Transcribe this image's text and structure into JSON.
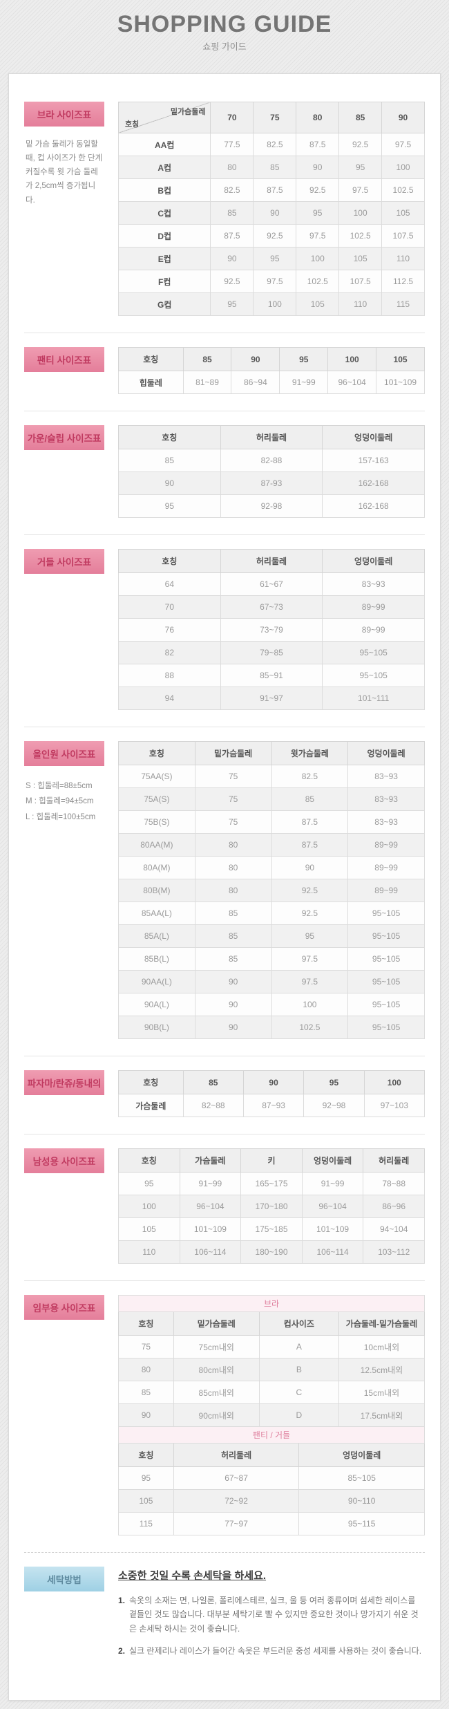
{
  "header": {
    "title": "SHOPPING GUIDE",
    "subtitle": "쇼핑 가이드"
  },
  "common": {
    "naming_label": "호칭"
  },
  "colors": {
    "accent_pink_bg": "#e8849f",
    "accent_pink_text": "#c03a60",
    "subheader_pink_bg": "#fcf0f4",
    "subheader_pink_text": "#df7f9d",
    "washing_blue_bg": "#a9d5e8",
    "washing_blue_text": "#5f8ba0",
    "table_header_bg": "#efefef",
    "row_alt_bg": "#f1f1f1"
  },
  "sections": {
    "bra": {
      "badge": "브라 사이즈표",
      "note": "밑 가슴 둘레가 동일할 때, 컵 사이즈가 한 단계 커질수록 윗 가슴 둘레가 2,5cm씩 증가됩니다.",
      "diagonal": {
        "top": "밑가슴둘레",
        "bottom": "호칭"
      },
      "columns": [
        "70",
        "75",
        "80",
        "85",
        "90"
      ],
      "rows": [
        [
          "AA컵",
          "77.5",
          "82.5",
          "87.5",
          "92.5",
          "97.5"
        ],
        [
          "A컵",
          "80",
          "85",
          "90",
          "95",
          "100"
        ],
        [
          "B컵",
          "82.5",
          "87.5",
          "92.5",
          "97.5",
          "102.5"
        ],
        [
          "C컵",
          "85",
          "90",
          "95",
          "100",
          "105"
        ],
        [
          "D컵",
          "87.5",
          "92.5",
          "97.5",
          "102.5",
          "107.5"
        ],
        [
          "E컵",
          "90",
          "95",
          "100",
          "105",
          "110"
        ],
        [
          "F컵",
          "92.5",
          "97.5",
          "102.5",
          "107.5",
          "112.5"
        ],
        [
          "G컵",
          "95",
          "100",
          "105",
          "110",
          "115"
        ]
      ]
    },
    "panty": {
      "badge": "팬티 사이즈표",
      "columns": [
        "호칭",
        "85",
        "90",
        "95",
        "100",
        "105"
      ],
      "rows": [
        [
          "힙둘레",
          "81~89",
          "86~94",
          "91~99",
          "96~104",
          "101~109"
        ]
      ]
    },
    "gownSlip": {
      "badge": "가운/슬립 사이즈표",
      "columns": [
        "호칭",
        "허리둘레",
        "엉덩이둘레"
      ],
      "rows": [
        [
          "85",
          "82-88",
          "157-163"
        ],
        [
          "90",
          "87-93",
          "162-168"
        ],
        [
          "95",
          "92-98",
          "162-168"
        ]
      ]
    },
    "girdle": {
      "badge": "거들 사이즈표",
      "columns": [
        "호칭",
        "허리둘레",
        "엉덩이둘레"
      ],
      "rows": [
        [
          "64",
          "61~67",
          "83~93"
        ],
        [
          "70",
          "67~73",
          "89~99"
        ],
        [
          "76",
          "73~79",
          "89~99"
        ],
        [
          "82",
          "79~85",
          "95~105"
        ],
        [
          "88",
          "85~91",
          "95~105"
        ],
        [
          "94",
          "91~97",
          "101~111"
        ]
      ]
    },
    "allInOne": {
      "badge": "올인원 사이즈표",
      "notes": [
        "S : 힙둘레=88±5cm",
        "M : 힙둘레=94±5cm",
        "L : 힙둘레=100±5cm"
      ],
      "columns": [
        "호칭",
        "밑가슴둘레",
        "윗가슴둘레",
        "엉덩이둘레"
      ],
      "rows": [
        [
          "75AA(S)",
          "75",
          "82.5",
          "83~93"
        ],
        [
          "75A(S)",
          "75",
          "85",
          "83~93"
        ],
        [
          "75B(S)",
          "75",
          "87.5",
          "83~93"
        ],
        [
          "80AA(M)",
          "80",
          "87.5",
          "89~99"
        ],
        [
          "80A(M)",
          "80",
          "90",
          "89~99"
        ],
        [
          "80B(M)",
          "80",
          "92.5",
          "89~99"
        ],
        [
          "85AA(L)",
          "85",
          "92.5",
          "95~105"
        ],
        [
          "85A(L)",
          "85",
          "95",
          "95~105"
        ],
        [
          "85B(L)",
          "85",
          "97.5",
          "95~105"
        ],
        [
          "90AA(L)",
          "90",
          "97.5",
          "95~105"
        ],
        [
          "90A(L)",
          "90",
          "100",
          "95~105"
        ],
        [
          "90B(L)",
          "90",
          "102.5",
          "95~105"
        ]
      ]
    },
    "pajama": {
      "badge": "파자마/란쥬/동내의",
      "columns": [
        "호칭",
        "85",
        "90",
        "95",
        "100"
      ],
      "rows": [
        [
          "가슴둘레",
          "82~88",
          "87~93",
          "92~98",
          "97~103"
        ]
      ]
    },
    "mens": {
      "badge": "남성용 사이즈표",
      "columns": [
        "호칭",
        "가슴둘레",
        "키",
        "엉덩이둘레",
        "허리둘레"
      ],
      "rows": [
        [
          "95",
          "91~99",
          "165~175",
          "91~99",
          "78~88"
        ],
        [
          "100",
          "96~104",
          "170~180",
          "96~104",
          "86~96"
        ],
        [
          "105",
          "101~109",
          "175~185",
          "101~109",
          "94~104"
        ],
        [
          "110",
          "106~114",
          "180~190",
          "106~114",
          "103~112"
        ]
      ]
    },
    "maternity": {
      "badge": "임부용 사이즈표",
      "braSubheader": "브라",
      "braColumns": [
        "호칭",
        "밑가슴둘레",
        "컵사이즈",
        "가슴둘레-밑가슴둘레"
      ],
      "braRows": [
        [
          "75",
          "75cm내외",
          "A",
          "10cm내외"
        ],
        [
          "80",
          "80cm내외",
          "B",
          "12.5cm내외"
        ],
        [
          "85",
          "85cm내외",
          "C",
          "15cm내외"
        ],
        [
          "90",
          "90cm내외",
          "D",
          "17.5cm내외"
        ]
      ],
      "pantySubheader": "팬티 / 거들",
      "pantyColumns": [
        "호칭",
        "허리둘레",
        "엉덩이둘레"
      ],
      "pantyRows": [
        [
          "95",
          "67~87",
          "85~105"
        ],
        [
          "105",
          "72~92",
          "90~110"
        ],
        [
          "115",
          "77~97",
          "95~115"
        ]
      ]
    },
    "washing": {
      "badge": "세탁방법",
      "title": "소중한 것일 수록 손세탁을 하세요.",
      "items": [
        {
          "num": "1.",
          "text": "속옷의 소재는 면, 나일론, 폴리에스테르, 실크, 울 등 여러 종류이며 섬세한 레이스를 곁들인 것도 많습니다. 대부분 세탁기로 빨 수 있지만 중요한 것이나 망가지기 쉬운 것은 손세탁 하시는 것이 좋습니다."
        },
        {
          "num": "2.",
          "text": "실크 란제리나 레이스가 들어간 속옷은 부드러운 중성 세제를 사용하는 것이 좋습니다."
        }
      ]
    }
  }
}
